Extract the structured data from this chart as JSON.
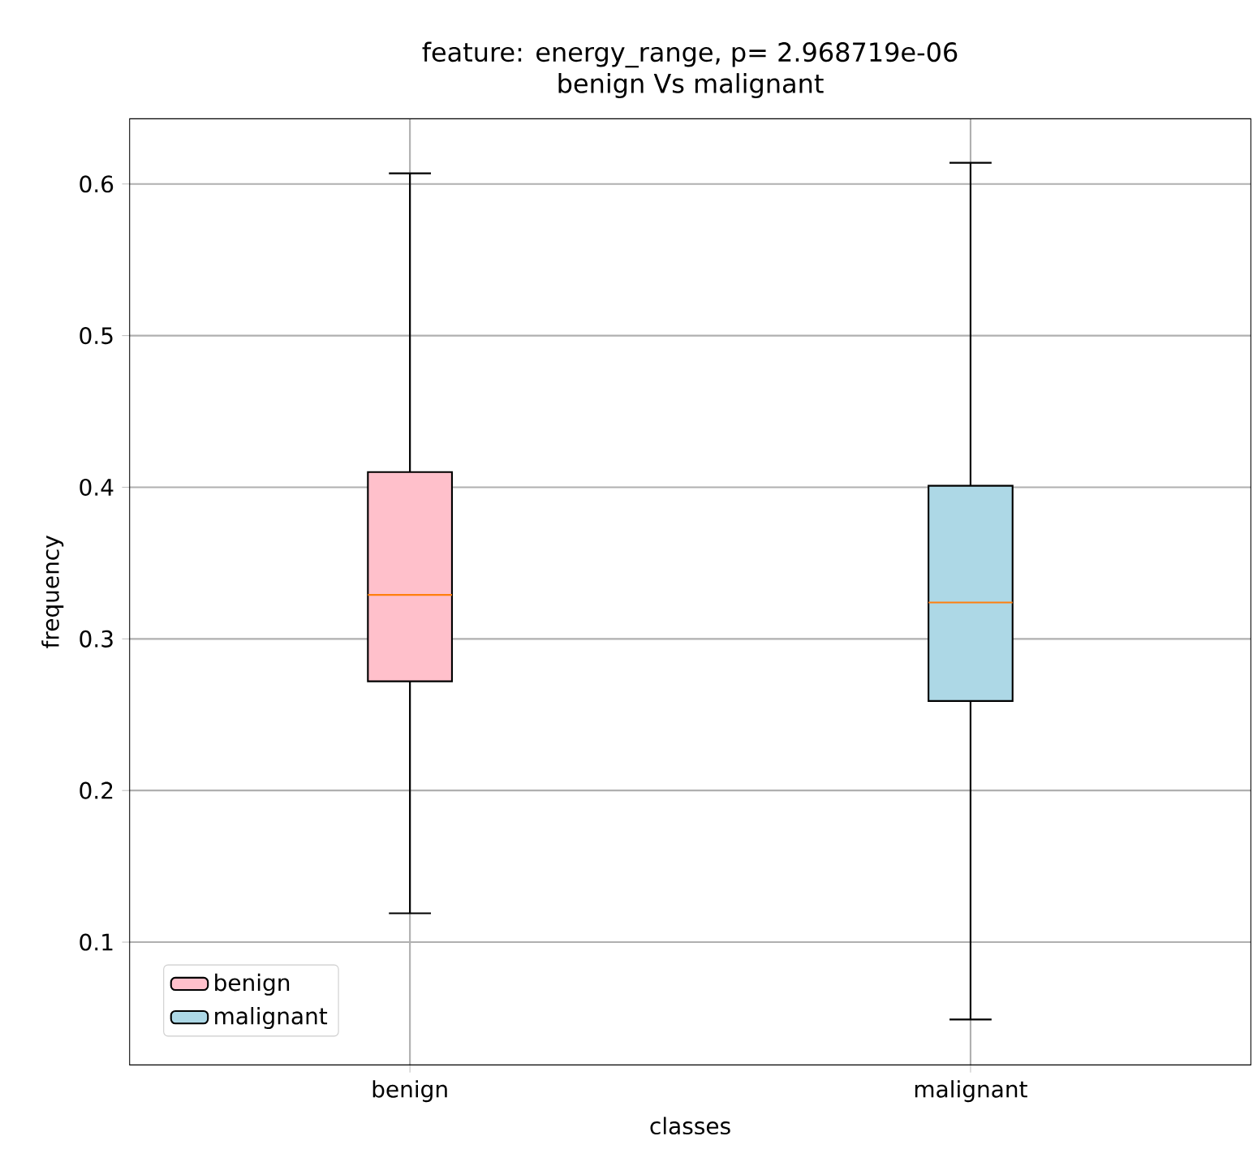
{
  "chart_data": {
    "type": "box",
    "title": "feature: energy_range, p= 2.968719e-06",
    "subtitle": "benign Vs malignant",
    "xlabel": "classes",
    "ylabel": "frequency",
    "categories": [
      "benign",
      "malignant"
    ],
    "series": [
      {
        "name": "benign",
        "color": "#ffc0cb",
        "boxes": [
          {
            "low": 0.119,
            "q1": 0.272,
            "median": 0.329,
            "q3": 0.41,
            "high": 0.607
          },
          null
        ]
      },
      {
        "name": "malignant",
        "color": "#add8e6",
        "boxes": [
          null,
          {
            "low": 0.049,
            "q1": 0.259,
            "median": 0.324,
            "q3": 0.401,
            "high": 0.614
          }
        ]
      }
    ],
    "ylim": [
      0.019,
      0.643
    ],
    "yticks": [
      0.1,
      0.2,
      0.3,
      0.4,
      0.5,
      0.6
    ],
    "grid": true,
    "legend": "bottom left"
  }
}
